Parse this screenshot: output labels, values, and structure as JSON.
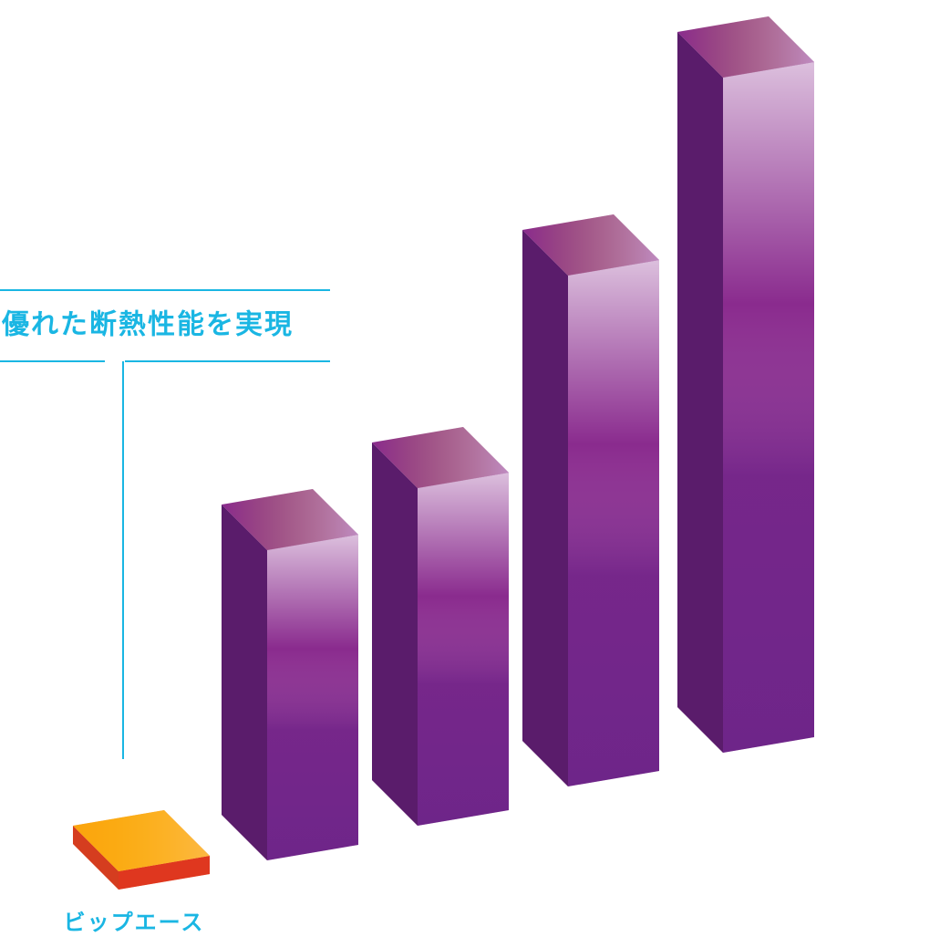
{
  "chart_data": {
    "type": "bar3d",
    "annotation": "優れた断熱性能を実現",
    "categories": [
      "ビップエース",
      null,
      null,
      null,
      null
    ],
    "values": [
      2,
      34,
      37,
      56,
      74
    ],
    "colors": [
      "#f5701f",
      "#8a2b8e",
      "#8a2b8e",
      "#8a2b8e",
      "#8a2b8e"
    ],
    "ylim": [
      0,
      100
    ]
  }
}
